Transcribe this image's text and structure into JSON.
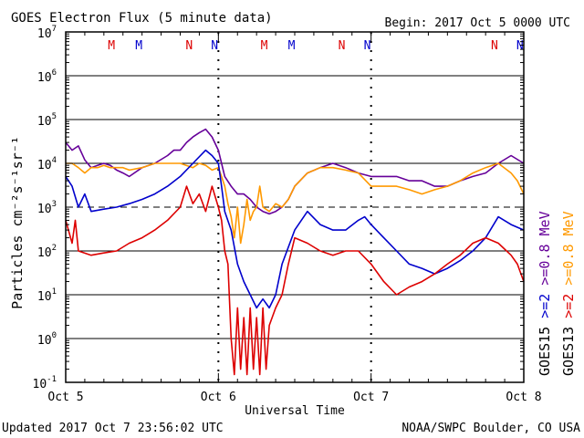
{
  "chart_data": {
    "type": "line",
    "title": "GOES Electron Flux (5 minute data)",
    "begin_label": "Begin: 2017 Oct 5 0000 UTC",
    "xlabel": "Universal Time",
    "ylabel": "Particles cm⁻²s⁻¹sr⁻¹",
    "updated": "Updated 2017 Oct  7 23:56:02 UTC",
    "credit": "NOAA/SWPC Boulder, CO USA",
    "y_scale": "log",
    "ylim": [
      0.1,
      10000000
    ],
    "xlim": [
      0,
      72
    ],
    "x_unit": "hours since 2017 Oct 5 0000 UTC",
    "x_ticks": [
      {
        "x": 0,
        "label": "Oct 5"
      },
      {
        "x": 24,
        "label": "Oct 6"
      },
      {
        "x": 48,
        "label": "Oct 7"
      },
      {
        "x": 72,
        "label": "Oct 8"
      }
    ],
    "y_ticks": [
      {
        "exp": -1,
        "base": "10",
        "sup": "-1"
      },
      {
        "exp": 0,
        "base": "10",
        "sup": "0"
      },
      {
        "exp": 1,
        "base": "10",
        "sup": "1"
      },
      {
        "exp": 2,
        "base": "10",
        "sup": "2"
      },
      {
        "exp": 3,
        "base": "10",
        "sup": "3"
      },
      {
        "exp": 4,
        "base": "10",
        "sup": "4"
      },
      {
        "exp": 5,
        "base": "10",
        "sup": "5"
      },
      {
        "exp": 6,
        "base": "10",
        "sup": "6"
      },
      {
        "exp": 7,
        "base": "10",
        "sup": "7"
      }
    ],
    "threshold_level": 1000,
    "day_markers": [
      {
        "x": 24
      },
      {
        "x": 48
      }
    ],
    "mn_markers": [
      {
        "x": 7.2,
        "label": "M",
        "color": "#dd0000"
      },
      {
        "x": 11.5,
        "label": "M",
        "color": "#0000cc"
      },
      {
        "x": 19.4,
        "label": "N",
        "color": "#dd0000"
      },
      {
        "x": 23.4,
        "label": "N",
        "color": "#0000cc"
      },
      {
        "x": 31.2,
        "label": "M",
        "color": "#dd0000"
      },
      {
        "x": 35.5,
        "label": "M",
        "color": "#0000cc"
      },
      {
        "x": 43.4,
        "label": "N",
        "color": "#dd0000"
      },
      {
        "x": 47.4,
        "label": "N",
        "color": "#0000cc"
      },
      {
        "x": 67.4,
        "label": "N",
        "color": "#dd0000"
      },
      {
        "x": 71.4,
        "label": "N",
        "color": "#0000cc"
      }
    ],
    "right_legend": [
      {
        "text": "GOES15",
        "color": "#000000"
      },
      {
        "text": ">=2",
        "color": "#0000cc"
      },
      {
        "text": ">=0.8",
        "color": "#660099"
      },
      {
        "text": "MeV",
        "color": "#660099"
      },
      {
        "text": "GOES13",
        "color": "#000000"
      },
      {
        "text": ">=2",
        "color": "#dd0000"
      },
      {
        "text": ">=0.8",
        "color": "#ff9900"
      },
      {
        "text": "MeV",
        "color": "#ff9900"
      }
    ],
    "series": [
      {
        "name": "GOES15 >=0.8 MeV",
        "color": "#660099",
        "x": [
          0,
          1,
          2,
          3,
          4,
          5,
          6,
          7,
          8,
          9,
          10,
          12,
          14,
          16,
          17,
          18,
          19,
          20,
          21,
          22,
          23,
          24,
          24.5,
          25,
          26,
          27,
          28,
          29,
          30,
          31,
          32,
          33,
          34,
          35,
          36,
          38,
          40,
          42,
          44,
          46,
          48,
          50,
          52,
          54,
          56,
          58,
          60,
          62,
          64,
          66,
          68,
          70,
          72
        ],
        "y": [
          30000,
          20000,
          25000,
          12000,
          8000,
          9000,
          10000,
          9000,
          7000,
          6000,
          5000,
          8000,
          10000,
          15000,
          20000,
          20000,
          30000,
          40000,
          50000,
          60000,
          40000,
          20000,
          10000,
          5000,
          3000,
          2000,
          2000,
          1500,
          1000,
          800,
          700,
          800,
          1000,
          1500,
          3000,
          6000,
          8000,
          10000,
          8000,
          6000,
          5000,
          5000,
          5000,
          4000,
          4000,
          3000,
          3000,
          4000,
          5000,
          6000,
          10000,
          15000,
          10000
        ]
      },
      {
        "name": "GOES13 >=0.8 MeV",
        "color": "#ff9900",
        "x": [
          0,
          1,
          2,
          3,
          4,
          5,
          6,
          7,
          8,
          9,
          10,
          12,
          14,
          16,
          18,
          20,
          21,
          22,
          23,
          24,
          24.5,
          25,
          25.5,
          26,
          26.5,
          27,
          27.5,
          28,
          28.5,
          29,
          29.5,
          30,
          30.5,
          31,
          32,
          33,
          34,
          35,
          36,
          38,
          40,
          42,
          44,
          46,
          48,
          50,
          52,
          54,
          56,
          58,
          60,
          62,
          64,
          66,
          68,
          70,
          71,
          72
        ],
        "y": [
          10000,
          10000,
          8000,
          6000,
          8000,
          8000,
          9000,
          8000,
          8000,
          8000,
          7000,
          8000,
          10000,
          10000,
          10000,
          8000,
          10000,
          9000,
          7000,
          8000,
          5000,
          3000,
          1200,
          600,
          200,
          1000,
          150,
          400,
          1500,
          500,
          800,
          1000,
          3000,
          1000,
          800,
          1200,
          1000,
          1500,
          3000,
          6000,
          8000,
          8000,
          7000,
          6000,
          3000,
          3000,
          3000,
          2500,
          2000,
          2500,
          3000,
          4000,
          6000,
          8000,
          10000,
          6000,
          4000,
          2000
        ]
      },
      {
        "name": "GOES15 >=2 MeV",
        "color": "#0000cc",
        "x": [
          0,
          1,
          2,
          3,
          4,
          6,
          8,
          10,
          12,
          14,
          16,
          18,
          20,
          22,
          23,
          24,
          24.5,
          25,
          26,
          27,
          28,
          29,
          30,
          31,
          32,
          33,
          34,
          36,
          38,
          40,
          42,
          44,
          46,
          47,
          48,
          50,
          52,
          54,
          56,
          58,
          60,
          62,
          64,
          66,
          68,
          70,
          72
        ],
        "y": [
          5000,
          3000,
          1000,
          2000,
          800,
          900,
          1000,
          1200,
          1500,
          2000,
          3000,
          5000,
          10000,
          20000,
          15000,
          10000,
          3000,
          800,
          300,
          50,
          20,
          10,
          5,
          8,
          5,
          10,
          50,
          300,
          800,
          400,
          300,
          300,
          500,
          600,
          400,
          200,
          100,
          50,
          40,
          30,
          40,
          60,
          100,
          200,
          600,
          400,
          300
        ]
      },
      {
        "name": "GOES13 >=2 MeV",
        "color": "#dd0000",
        "x": [
          0,
          1,
          1.5,
          2,
          4,
          6,
          8,
          10,
          12,
          14,
          16,
          18,
          19,
          20,
          21,
          22,
          23,
          24,
          24.5,
          25,
          25.5,
          26,
          26.5,
          27,
          27.5,
          28,
          28.5,
          29,
          29.5,
          30,
          30.5,
          31,
          31.5,
          32,
          33,
          34,
          35,
          36,
          38,
          40,
          42,
          44,
          46,
          48,
          50,
          52,
          54,
          56,
          58,
          60,
          62,
          64,
          66,
          68,
          70,
          71,
          72
        ],
        "y": [
          500,
          150,
          500,
          100,
          80,
          90,
          100,
          150,
          200,
          300,
          500,
          1000,
          3000,
          1200,
          2000,
          800,
          3000,
          1000,
          500,
          100,
          50,
          1,
          0.15,
          5,
          0.2,
          3,
          0.15,
          5,
          0.2,
          3,
          0.15,
          5,
          0.2,
          2,
          5,
          10,
          50,
          200,
          150,
          100,
          80,
          100,
          100,
          50,
          20,
          10,
          15,
          20,
          30,
          50,
          80,
          150,
          200,
          150,
          80,
          50,
          20
        ]
      }
    ]
  }
}
